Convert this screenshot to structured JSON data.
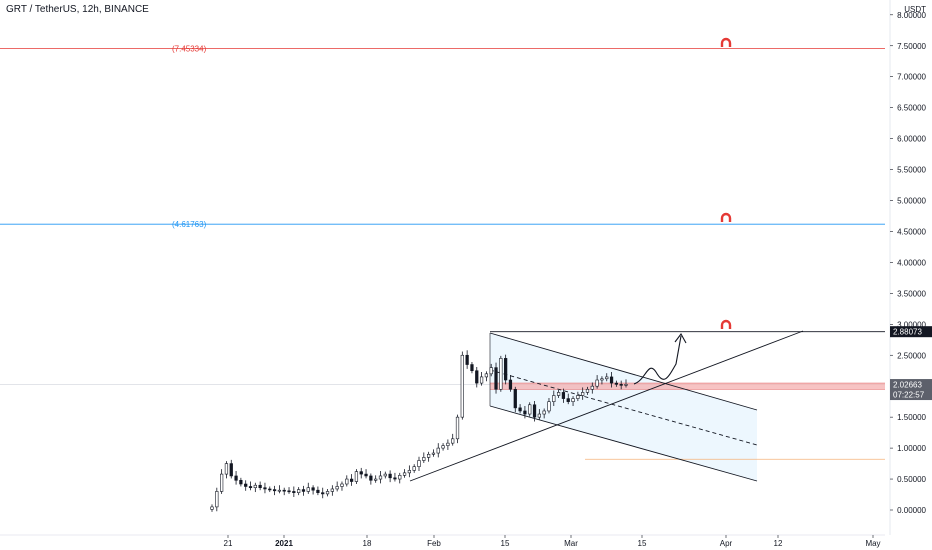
{
  "symbol": {
    "title": "GRT / TetherUS, 12h, BINANCE"
  },
  "price_axis": {
    "unit": "USDT",
    "ticks": [
      "0.00000",
      "0.50000",
      "1.00000",
      "1.50000",
      "2.00000",
      "2.50000",
      "3.00000",
      "3.50000",
      "4.00000",
      "4.50000",
      "5.00000",
      "5.50000",
      "6.00000",
      "6.50000",
      "7.00000",
      "7.50000",
      "8.00000"
    ]
  },
  "time_axis": {
    "ticks": [
      {
        "label": "21",
        "bold": false
      },
      {
        "label": "2021",
        "bold": true
      },
      {
        "label": "18",
        "bold": false
      },
      {
        "label": "Feb",
        "bold": false
      },
      {
        "label": "15",
        "bold": false
      },
      {
        "label": "Mar",
        "bold": false
      },
      {
        "label": "15",
        "bold": false
      },
      {
        "label": "Apr",
        "bold": false
      },
      {
        "label": "12",
        "bold": false
      },
      {
        "label": "May",
        "bold": false
      }
    ]
  },
  "levels": [
    {
      "label": "(7.45334)",
      "value": 7.45334,
      "color": "#e53935"
    },
    {
      "label": "(4.61763)",
      "value": 4.61763,
      "color": "#2196f3"
    }
  ],
  "price_tags": {
    "resistance": {
      "label": "2.88073",
      "value": 2.88073
    },
    "current": {
      "label": "2.02663",
      "value": 2.02663
    },
    "countdown": {
      "label": "07:22:57"
    }
  },
  "colors": {
    "candle": "#131722",
    "red_level": "#e53935",
    "blue_level": "#2196f3",
    "orange_line": "#f5b27a",
    "support_zone": "#f4a9a9",
    "channel_fill": "#e3f2fd",
    "magnet_icon": "#e53935",
    "tag_dark": "#131722",
    "tag_grey": "#5d606b"
  },
  "icons": [
    "magnet-icon",
    "magnet-icon",
    "magnet-icon"
  ],
  "chart_data": {
    "type": "candlestick",
    "title": "GRT / TetherUS, 12h, BINANCE",
    "ylabel": "USDT",
    "ylim": [
      -0.3,
      8.1
    ],
    "x_ticks": [
      "21",
      "2021",
      "18",
      "Feb",
      "15",
      "Mar",
      "15",
      "Apr",
      "12",
      "May"
    ],
    "series": [
      {
        "x": [
          "Dec 17",
          "Dec 18",
          "Dec 19",
          "Dec 20",
          "Dec 21",
          "Dec 22",
          "Dec 23",
          "Dec 24",
          "Dec 25",
          "Dec 26",
          "Dec 27",
          "Dec 28",
          "Dec 29",
          "Dec 30",
          "Dec 31",
          "Jan 01",
          "Jan 02",
          "Jan 03",
          "Jan 04",
          "Jan 05",
          "Jan 06",
          "Jan 07",
          "Jan 08",
          "Jan 09",
          "Jan 10",
          "Jan 11",
          "Jan 12",
          "Jan 13",
          "Jan 14",
          "Jan 15",
          "Jan 16",
          "Jan 17",
          "Jan 18",
          "Jan 19",
          "Jan 20",
          "Jan 21",
          "Jan 22",
          "Jan 23",
          "Jan 24",
          "Jan 25",
          "Jan 26",
          "Jan 27",
          "Jan 28",
          "Jan 29",
          "Jan 30",
          "Jan 31",
          "Feb 01",
          "Feb 02",
          "Feb 03",
          "Feb 04",
          "Feb 05",
          "Feb 06",
          "Feb 07",
          "Feb 08",
          "Feb 09",
          "Feb 10",
          "Feb 11",
          "Feb 12",
          "Feb 13",
          "Feb 14",
          "Feb 15",
          "Feb 16",
          "Feb 17",
          "Feb 18",
          "Feb 19",
          "Feb 20",
          "Feb 21",
          "Feb 22",
          "Feb 23",
          "Feb 24",
          "Feb 25",
          "Feb 26",
          "Feb 27",
          "Feb 28",
          "Mar 01",
          "Mar 02",
          "Mar 03",
          "Mar 04",
          "Mar 05",
          "Mar 06",
          "Mar 07",
          "Mar 08",
          "Mar 09",
          "Mar 10",
          "Mar 11",
          "Mar 12",
          "Mar 13"
        ],
        "close": [
          0.05,
          0.3,
          0.58,
          0.75,
          0.55,
          0.48,
          0.42,
          0.38,
          0.36,
          0.4,
          0.36,
          0.34,
          0.33,
          0.31,
          0.32,
          0.31,
          0.3,
          0.28,
          0.33,
          0.3,
          0.36,
          0.32,
          0.28,
          0.26,
          0.3,
          0.34,
          0.38,
          0.42,
          0.5,
          0.46,
          0.62,
          0.58,
          0.55,
          0.48,
          0.5,
          0.55,
          0.58,
          0.52,
          0.5,
          0.56,
          0.6,
          0.64,
          0.7,
          0.8,
          0.85,
          0.9,
          0.92,
          1.0,
          1.04,
          1.08,
          1.15,
          1.5,
          2.5,
          2.35,
          2.25,
          2.05,
          2.15,
          2.2,
          2.3,
          1.95,
          2.45,
          2.1,
          1.95,
          1.65,
          1.6,
          1.55,
          1.7,
          1.5,
          1.55,
          1.6,
          1.75,
          1.85,
          1.9,
          1.8,
          1.75,
          1.8,
          1.85,
          1.9,
          1.95,
          2.0,
          2.1,
          2.12,
          2.15,
          2.05,
          2.03,
          2.02,
          2.03
        ]
      }
    ],
    "annotations": {
      "horizontal_levels": [
        7.45334,
        4.61763,
        2.88073,
        0.82
      ],
      "support_zone": [
        1.95,
        2.05
      ],
      "current_price": 2.02663
    }
  }
}
